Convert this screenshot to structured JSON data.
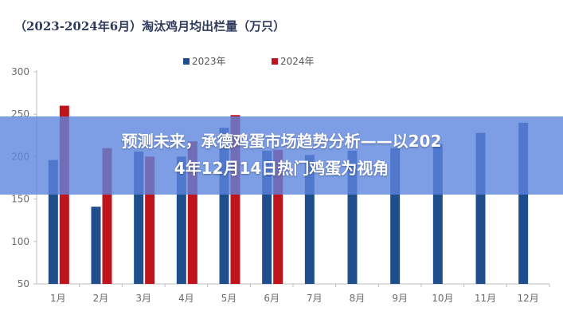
{
  "header": {
    "title": "（2023-2024年6月）淘汰鸡月均出栏量（万只）"
  },
  "banner": {
    "text": "预测未来，承德鸡蛋市场趋势分析——以2024年12月14日热门鸡蛋为视角"
  },
  "chart_data": {
    "type": "bar",
    "title": "（2023-2024年6月）淘汰鸡月均出栏量（万只）",
    "categories": [
      "1月",
      "2月",
      "3月",
      "4月",
      "5月",
      "6月",
      "7月",
      "8月",
      "9月",
      "10月",
      "11月",
      "12月"
    ],
    "series": [
      {
        "name": "2023年",
        "color": "#1f4e8c",
        "values": [
          196,
          141,
          206,
          200,
          234,
          207,
          202,
          207,
          210,
          215,
          228,
          240
        ]
      },
      {
        "name": "2024年",
        "color": "#c0141c",
        "values": [
          260,
          210,
          200,
          218,
          249,
          208,
          null,
          null,
          null,
          null,
          null,
          null
        ]
      }
    ],
    "ylim": [
      50,
      300
    ],
    "yticks": [
      50,
      100,
      150,
      200,
      250,
      300
    ],
    "legend": "top-center",
    "grid": false
  }
}
